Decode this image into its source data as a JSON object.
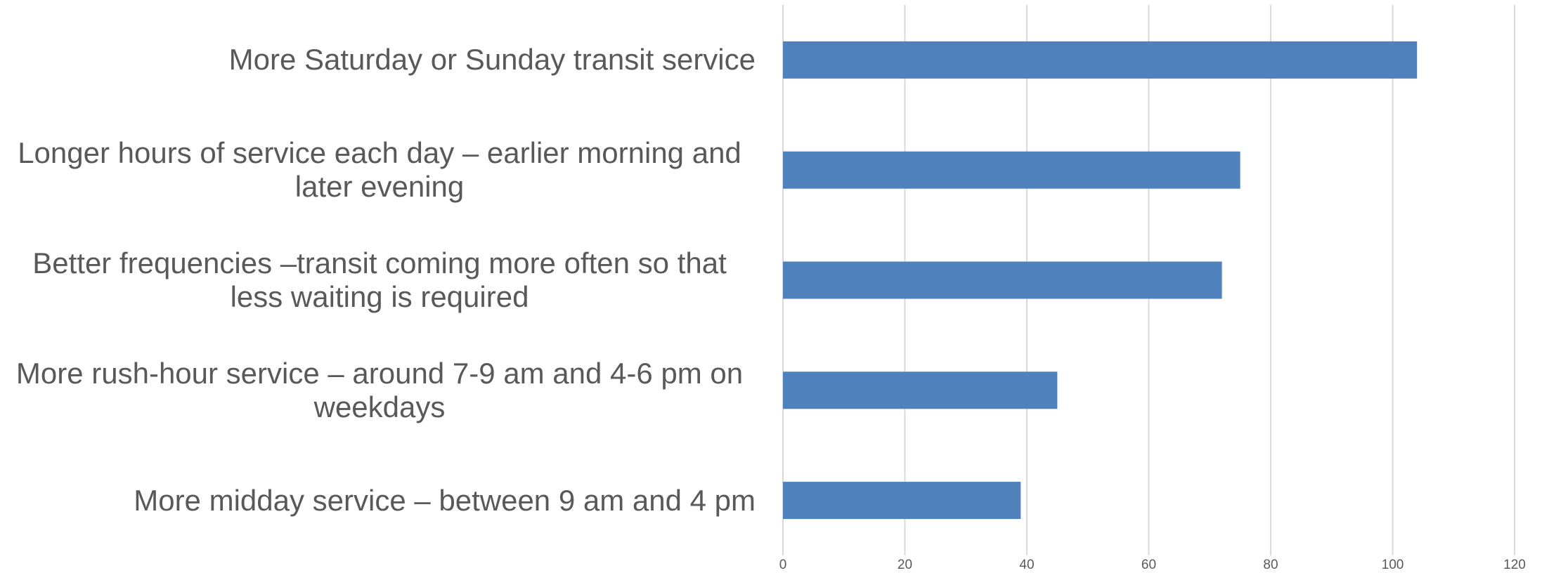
{
  "chart_data": {
    "type": "bar",
    "orientation": "horizontal",
    "categories": [
      "More Saturday or Sunday transit service",
      "Longer hours of service each day – earlier morning and later evening",
      "Better frequencies –transit coming more often so that less waiting is required",
      "More rush-hour service – around 7-9 am and 4-6 pm on weekdays",
      "More midday service – between 9 am and 4 pm"
    ],
    "values": [
      104,
      75,
      72,
      45,
      39
    ],
    "color": "#4f81bd",
    "xlim": [
      0,
      120
    ],
    "xticks": [
      0,
      20,
      40,
      60,
      80,
      100,
      120
    ],
    "grid": true
  }
}
